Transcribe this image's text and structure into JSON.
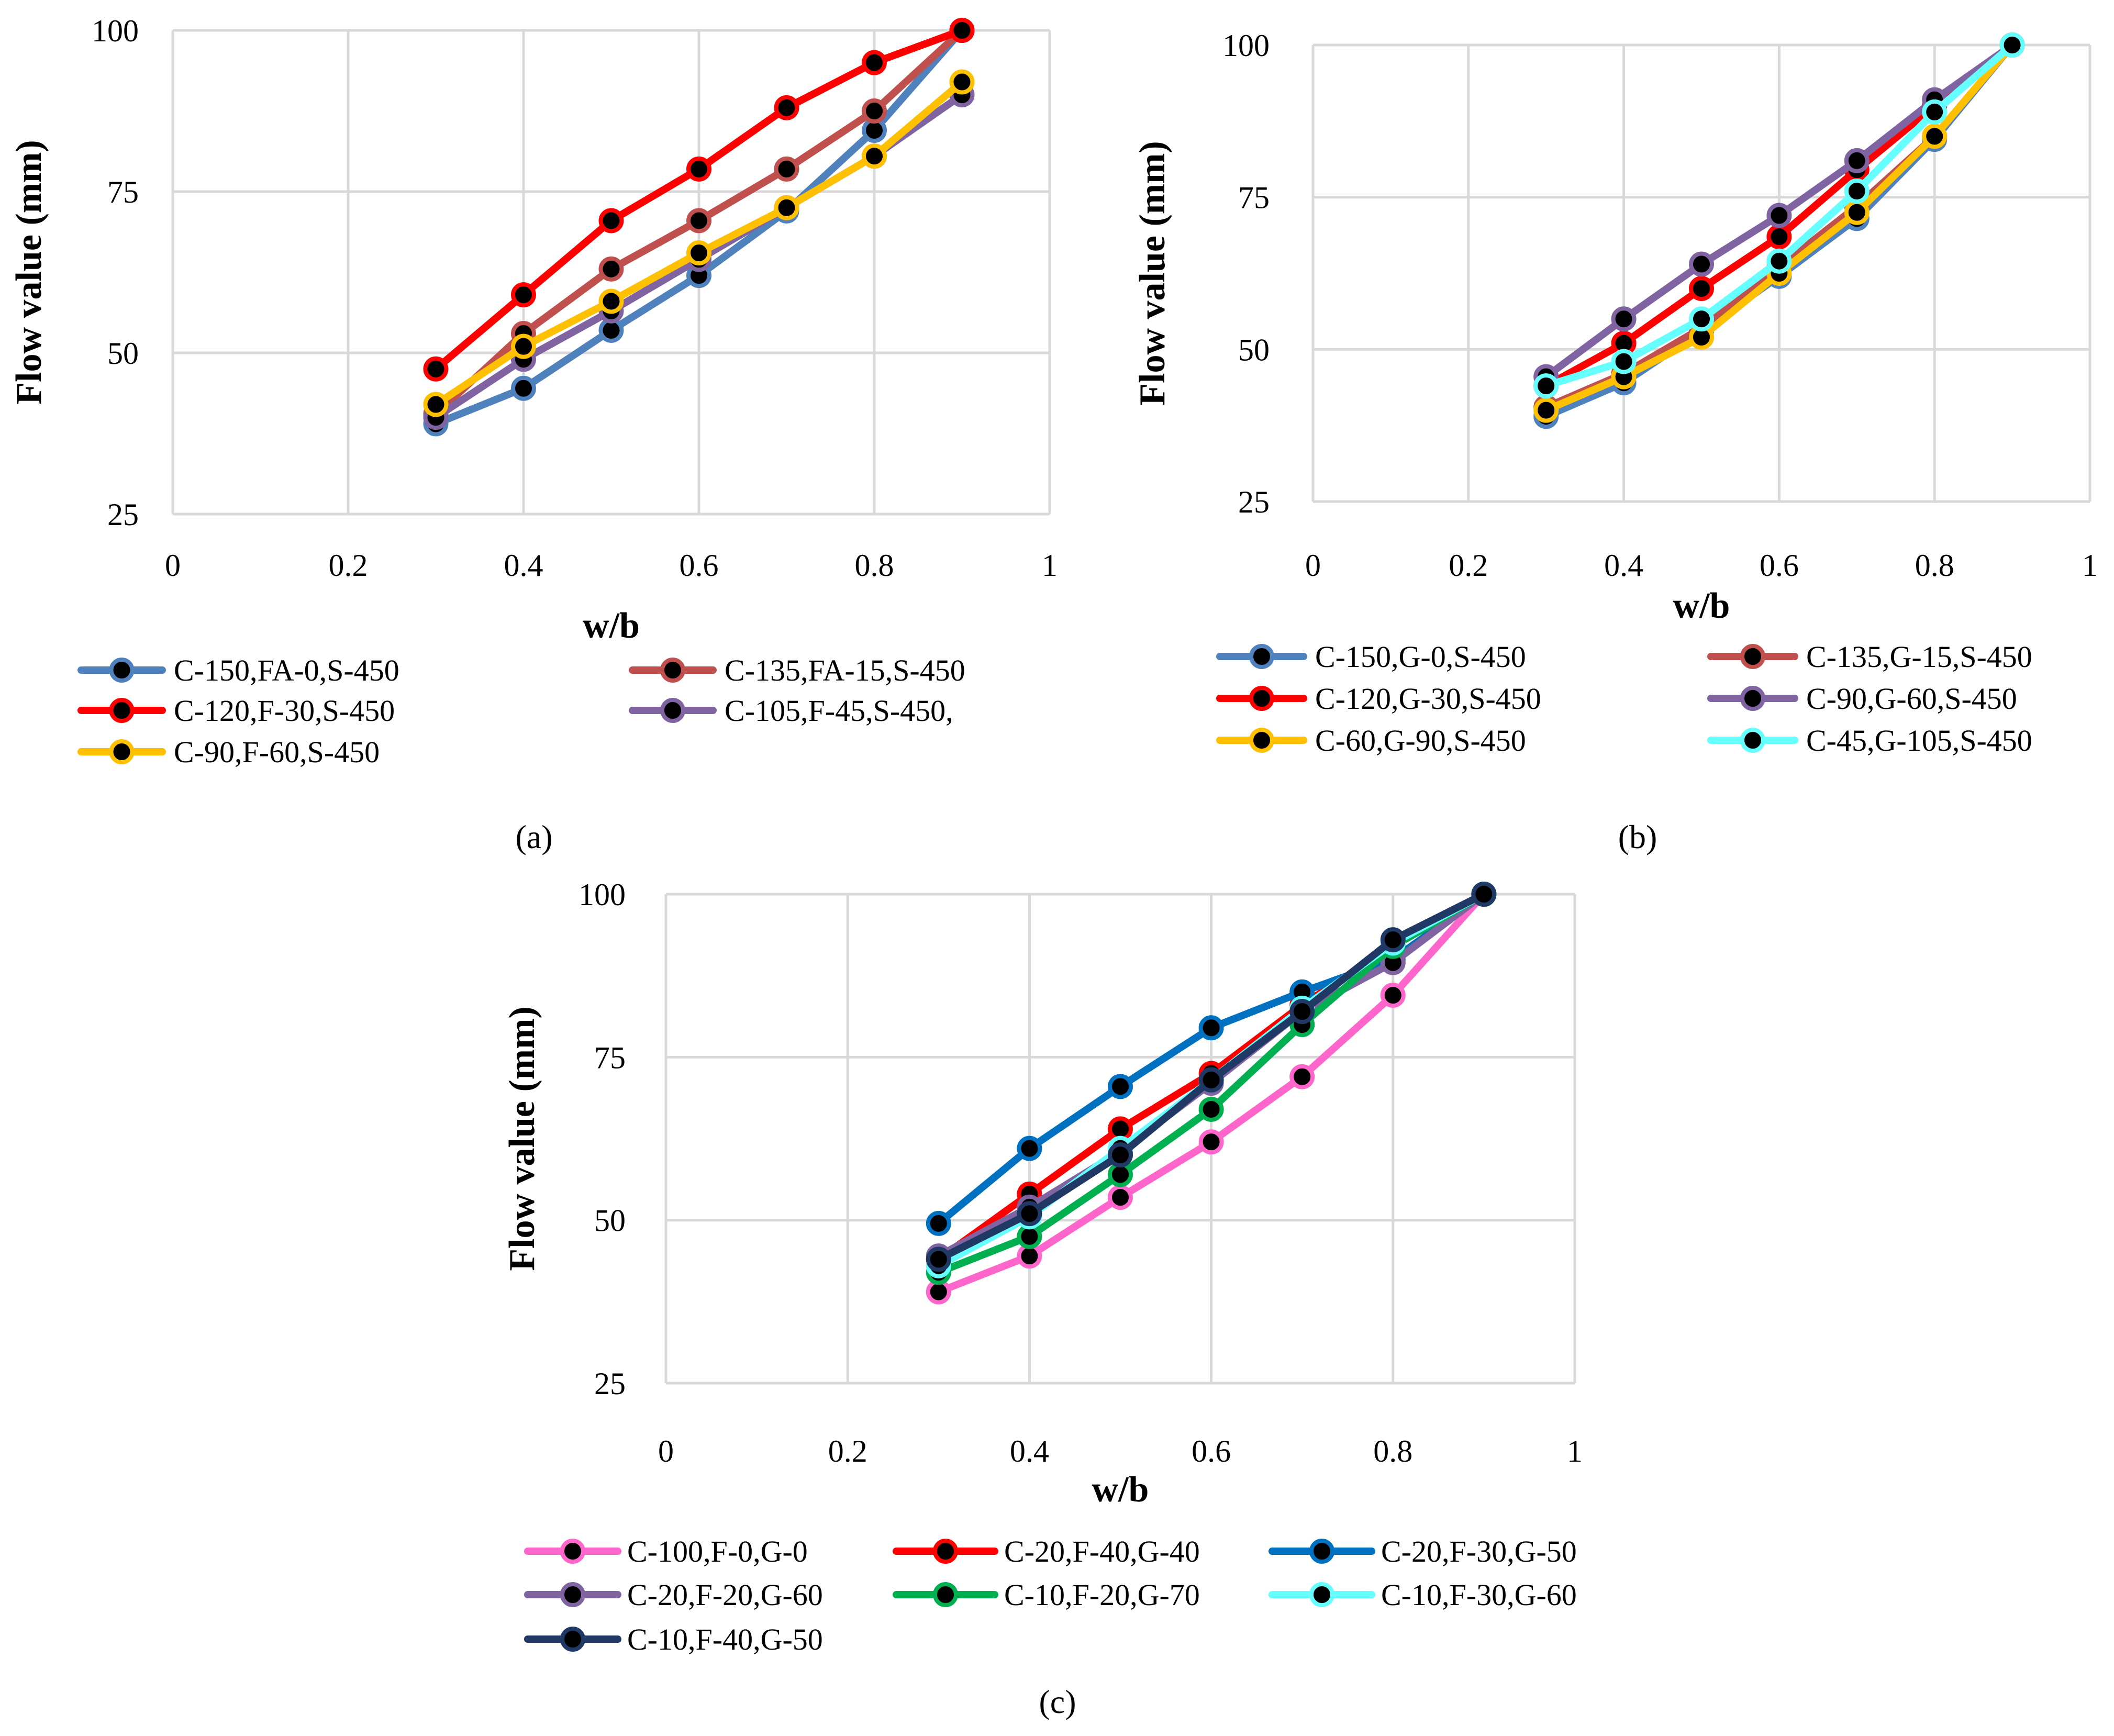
{
  "chart_data": [
    {
      "id": "a",
      "type": "line",
      "panel_label": "(a)",
      "xlabel": "w/b",
      "ylabel": "Flow value (mm)",
      "xlim": [
        0,
        1
      ],
      "ylim": [
        25,
        100
      ],
      "xticks": [
        0,
        0.2,
        0.4,
        0.6,
        0.8,
        1
      ],
      "xtick_labels": [
        "0",
        "0.2",
        "0.4",
        "0.6",
        "0.8",
        "1"
      ],
      "yticks": [
        25,
        50,
        75,
        100
      ],
      "ytick_labels": [
        "25",
        "50",
        "75",
        "100"
      ],
      "grid": true,
      "x": [
        0.3,
        0.4,
        0.5,
        0.6,
        0.7,
        0.8,
        0.9
      ],
      "series": [
        {
          "name": "C-150,FA-0,S-450",
          "color": "#4f81bd",
          "values": [
            39,
            44.5,
            53.5,
            62,
            72,
            84.5,
            100
          ]
        },
        {
          "name": "C-135,FA-15,S-450",
          "color": "#c0504d",
          "values": [
            40.5,
            53,
            63,
            70.5,
            78.5,
            87.5,
            100
          ]
        },
        {
          "name": "C-120,F-30,S-450",
          "color": "#ff0000",
          "values": [
            47.5,
            59,
            70.5,
            78.5,
            88,
            95,
            100
          ]
        },
        {
          "name": "C-105,F-45,S-450,",
          "color": "#8064a2",
          "values": [
            40,
            49,
            56.5,
            64.5,
            72.5,
            80.5,
            90
          ]
        },
        {
          "name": "C-90,F-60,S-450",
          "color": "#ffc000",
          "values": [
            42,
            51,
            58,
            65.5,
            72.5,
            80.5,
            92
          ]
        }
      ]
    },
    {
      "id": "b",
      "type": "line",
      "panel_label": "(b)",
      "xlabel": "w/b",
      "ylabel": "Flow value (mm)",
      "xlim": [
        0,
        1
      ],
      "ylim": [
        25,
        100
      ],
      "xticks": [
        0,
        0.2,
        0.4,
        0.6,
        0.8,
        1
      ],
      "xtick_labels": [
        "0",
        "0.2",
        "0.4",
        "0.6",
        "0.8",
        "1"
      ],
      "yticks": [
        25,
        50,
        75,
        100
      ],
      "ytick_labels": [
        "25",
        "50",
        "75",
        "100"
      ],
      "grid": true,
      "x": [
        0.3,
        0.4,
        0.5,
        0.6,
        0.7,
        0.8,
        0.9
      ],
      "series": [
        {
          "name": "C-150,G-0,S-450",
          "color": "#4f81bd",
          "values": [
            39,
            44.5,
            53,
            62,
            71.5,
            84.5,
            100
          ]
        },
        {
          "name": "C-135,G-15,S-450",
          "color": "#c0504d",
          "values": [
            40.5,
            46,
            53.5,
            63.5,
            73.5,
            85,
            100
          ]
        },
        {
          "name": "C-120,G-30,S-450",
          "color": "#ff0000",
          "values": [
            44,
            51,
            60,
            68.5,
            79.5,
            90,
            100
          ]
        },
        {
          "name": "C-90,G-60,S-450",
          "color": "#8064a2",
          "values": [
            45.5,
            55,
            64,
            72,
            81,
            91,
            100
          ]
        },
        {
          "name": "C-60,G-90,S-450",
          "color": "#ffc000",
          "values": [
            40,
            45.5,
            52,
            62.5,
            72.5,
            85,
            100
          ]
        },
        {
          "name": "C-45,G-105,S-450",
          "color": "#66ffff",
          "values": [
            44,
            48,
            55,
            64.5,
            76,
            89,
            100
          ]
        }
      ]
    },
    {
      "id": "c",
      "type": "line",
      "panel_label": "(c)",
      "xlabel": "w/b",
      "ylabel": "Flow value (mm)",
      "xlim": [
        0,
        1
      ],
      "ylim": [
        25,
        100
      ],
      "xticks": [
        0,
        0.2,
        0.4,
        0.6,
        0.8,
        1
      ],
      "xtick_labels": [
        "0",
        "0.2",
        "0.4",
        "0.6",
        "0.8",
        "1"
      ],
      "yticks": [
        25,
        50,
        75,
        100
      ],
      "ytick_labels": [
        "25",
        "50",
        "75",
        "100"
      ],
      "grid": true,
      "x": [
        0.3,
        0.4,
        0.5,
        0.6,
        0.7,
        0.8,
        0.9
      ],
      "series": [
        {
          "name": "C-100,F-0,G-0",
          "color": "#ff66cc",
          "values": [
            39,
            44.5,
            53.5,
            62,
            72,
            84.5,
            100
          ]
        },
        {
          "name": "C-20,F-40,G-40",
          "color": "#ff0000",
          "values": [
            44,
            54,
            64,
            72.5,
            83,
            92,
            100
          ]
        },
        {
          "name": "C-20,F-30,G-50",
          "color": "#0070c0",
          "values": [
            49.5,
            61,
            70.5,
            79.5,
            85,
            90,
            100
          ]
        },
        {
          "name": "C-20,F-20,G-60",
          "color": "#8064a2",
          "values": [
            44.5,
            52,
            60.5,
            71,
            82,
            89.5,
            100
          ]
        },
        {
          "name": "C-10,F-20,G-70",
          "color": "#00b050",
          "values": [
            42,
            47.5,
            57,
            67,
            80,
            92,
            100
          ]
        },
        {
          "name": "C-10,F-30,G-60",
          "color": "#66ffff",
          "values": [
            43,
            50.5,
            61,
            71.5,
            82.5,
            92.5,
            100
          ]
        },
        {
          "name": "C-10,F-40,G-50",
          "color": "#1f3864",
          "values": [
            44,
            51,
            60,
            71.5,
            82,
            93,
            100
          ]
        }
      ]
    }
  ]
}
